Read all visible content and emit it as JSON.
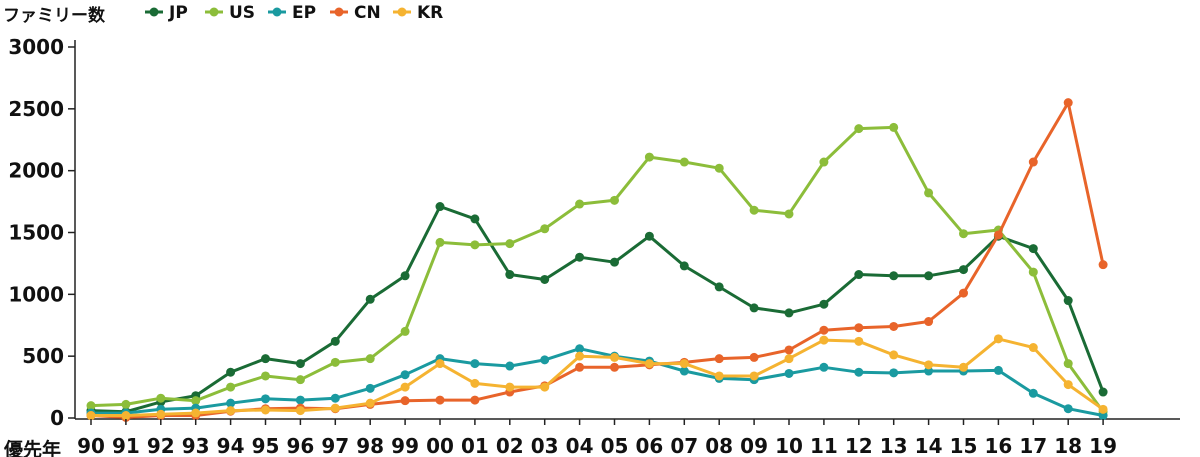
{
  "chart_data": {
    "type": "line",
    "ylabel": "ファミリー数",
    "xlabel": "優先年",
    "ylim": [
      0,
      3000
    ],
    "yticks": [
      "0",
      "500",
      "1000",
      "1500",
      "2000",
      "2500",
      "3000"
    ],
    "ytick_values": [
      0,
      500,
      1000,
      1500,
      2000,
      2500,
      3000
    ],
    "categories": [
      "90",
      "91",
      "92",
      "93",
      "94",
      "95",
      "96",
      "97",
      "98",
      "99",
      "00",
      "01",
      "02",
      "03",
      "04",
      "05",
      "06",
      "07",
      "08",
      "09",
      "10",
      "11",
      "12",
      "13",
      "14",
      "15",
      "16",
      "17",
      "18",
      "19"
    ],
    "grid": false,
    "legend_position": "top",
    "series": [
      {
        "name": "JP",
        "color": "#1a6b35",
        "values": [
          60,
          50,
          130,
          180,
          370,
          480,
          440,
          620,
          960,
          1150,
          1710,
          1610,
          1160,
          1120,
          1300,
          1260,
          1470,
          1230,
          1060,
          890,
          850,
          920,
          1160,
          1150,
          1150,
          1200,
          1470,
          1370,
          950,
          210
        ]
      },
      {
        "name": "US",
        "color": "#8cbd3a",
        "values": [
          100,
          110,
          160,
          140,
          250,
          340,
          310,
          450,
          480,
          700,
          1420,
          1400,
          1410,
          1530,
          1730,
          1760,
          2110,
          2070,
          2020,
          1680,
          1650,
          2070,
          2340,
          2350,
          1820,
          1490,
          1520,
          1180,
          440,
          50
        ]
      },
      {
        "name": "EP",
        "color": "#1a9aa0",
        "values": [
          40,
          40,
          70,
          80,
          120,
          155,
          145,
          160,
          240,
          350,
          480,
          440,
          420,
          470,
          560,
          500,
          460,
          380,
          320,
          310,
          360,
          410,
          370,
          365,
          380,
          380,
          385,
          200,
          75,
          20
        ]
      },
      {
        "name": "CN",
        "color": "#e8642a",
        "values": [
          20,
          5,
          20,
          20,
          55,
          75,
          80,
          75,
          110,
          140,
          145,
          145,
          210,
          260,
          410,
          410,
          430,
          450,
          480,
          490,
          550,
          710,
          730,
          740,
          780,
          1010,
          1480,
          2070,
          2550,
          1240
        ]
      },
      {
        "name": "KR",
        "color": "#f5b331",
        "values": [
          20,
          20,
          30,
          40,
          60,
          65,
          60,
          80,
          120,
          250,
          440,
          280,
          250,
          250,
          500,
          490,
          440,
          440,
          340,
          340,
          480,
          630,
          620,
          510,
          430,
          410,
          640,
          570,
          270,
          70
        ]
      }
    ]
  }
}
